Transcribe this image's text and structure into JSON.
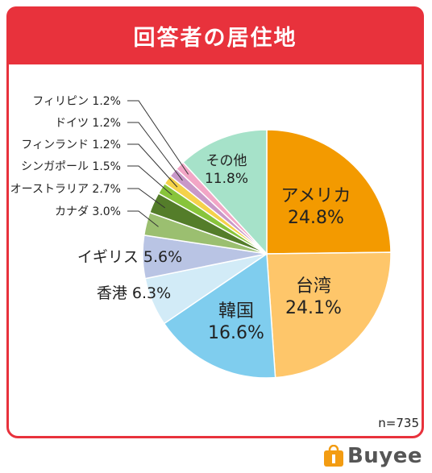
{
  "header": {
    "title": "回答者の居住地"
  },
  "footer": {
    "n_label": "n=735",
    "brand": "Buyee"
  },
  "colors": {
    "frame": "#e8323c",
    "brand_orange": "#f39c12"
  },
  "chart_data": {
    "type": "pie",
    "title": "回答者の居住地",
    "start_angle_deg": 0,
    "direction": "clockwise",
    "slices": [
      {
        "label": "アメリカ",
        "value": 24.8,
        "value_label": "24.8%",
        "color": "#f39a00"
      },
      {
        "label": "台湾",
        "value": 24.1,
        "value_label": "24.1%",
        "color": "#fec66a"
      },
      {
        "label": "韓国",
        "value": 16.6,
        "value_label": "16.6%",
        "color": "#7fcdee"
      },
      {
        "label": "香港",
        "value": 6.3,
        "value_label": "6.3%",
        "color": "#d2ebf7"
      },
      {
        "label": "イギリス",
        "value": 5.6,
        "value_label": "5.6%",
        "color": "#b9c4e4"
      },
      {
        "label": "カナダ",
        "value": 3.0,
        "value_label": "3.0%",
        "color": "#9bbf70"
      },
      {
        "label": "オーストラリア",
        "value": 2.7,
        "value_label": "2.7%",
        "color": "#547d2a"
      },
      {
        "label": "シンガポール",
        "value": 1.5,
        "value_label": "1.5%",
        "color": "#88c43b"
      },
      {
        "label": "フィンランド",
        "value": 1.2,
        "value_label": "1.2%",
        "color": "#f5d24a"
      },
      {
        "label": "ドイツ",
        "value": 1.2,
        "value_label": "1.2%",
        "color": "#c898c8"
      },
      {
        "label": "フィリピン",
        "value": 1.2,
        "value_label": "1.2%",
        "color": "#f2a6c6"
      },
      {
        "label": "その他",
        "value": 11.8,
        "value_label": "11.8%",
        "color": "#a6e2c9"
      }
    ]
  }
}
